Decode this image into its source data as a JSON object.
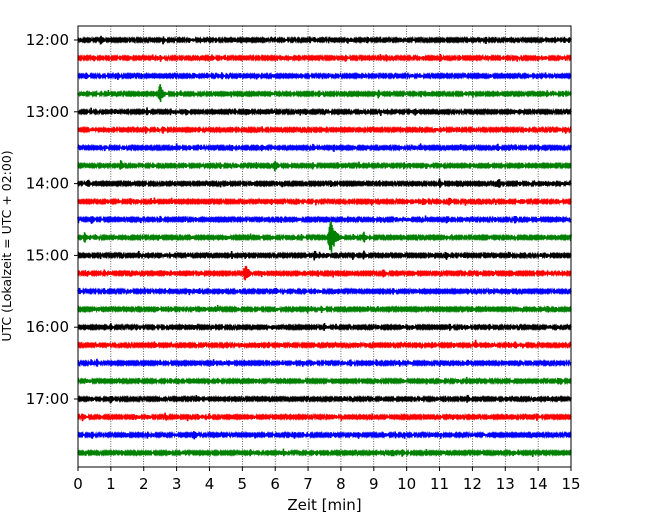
{
  "chart_data": {
    "type": "line",
    "title": "",
    "xlabel": "Zeit  [min]",
    "ylabel": "UTC (Lokalzeit = UTC + 02:00)",
    "xlim": [
      0,
      15
    ],
    "x_ticks": [
      0,
      1,
      2,
      3,
      4,
      5,
      6,
      7,
      8,
      9,
      10,
      11,
      12,
      13,
      14,
      15
    ],
    "y_tick_labels": [
      "12:00",
      "13:00",
      "14:00",
      "15:00",
      "16:00",
      "17:00"
    ],
    "grid": "vertical dotted at each minute",
    "color_cycle": [
      "#000000",
      "#ff0000",
      "#0000ff",
      "#008000"
    ],
    "traces": [
      {
        "start": "12:00",
        "color": "#000000",
        "events": [
          {
            "x": 0.7,
            "amp": 0.35
          },
          {
            "x": 8.2,
            "amp": 0.25
          },
          {
            "x": 8.8,
            "amp": 0.25
          },
          {
            "x": 14.8,
            "amp": 0.25
          }
        ]
      },
      {
        "start": "12:15",
        "color": "#ff0000",
        "events": [
          {
            "x": 7.8,
            "amp": 0.2
          },
          {
            "x": 11.6,
            "amp": 0.2
          }
        ]
      },
      {
        "start": "12:30",
        "color": "#0000ff",
        "events": [
          {
            "x": 6.8,
            "amp": 0.2
          },
          {
            "x": 10.4,
            "amp": 0.2
          }
        ]
      },
      {
        "start": "12:45",
        "color": "#008000",
        "events": [
          {
            "x": 2.5,
            "amp": 0.55
          }
        ]
      },
      {
        "start": "13:00",
        "color": "#000000",
        "events": [
          {
            "x": 2.1,
            "amp": 0.25
          },
          {
            "x": 5.9,
            "amp": 0.2
          }
        ]
      },
      {
        "start": "13:15",
        "color": "#ff0000",
        "events": [
          {
            "x": 2.6,
            "amp": 0.25
          },
          {
            "x": 5.6,
            "amp": 0.2
          }
        ]
      },
      {
        "start": "13:30",
        "color": "#0000ff",
        "events": [
          {
            "x": 1.4,
            "amp": 0.2
          },
          {
            "x": 14.0,
            "amp": 0.25
          }
        ]
      },
      {
        "start": "13:45",
        "color": "#008000",
        "events": [
          {
            "x": 1.3,
            "amp": 0.35
          },
          {
            "x": 6.0,
            "amp": 0.4
          }
        ]
      },
      {
        "start": "14:00",
        "color": "#000000",
        "events": [
          {
            "x": 0.3,
            "amp": 0.3
          },
          {
            "x": 12.8,
            "amp": 0.35
          },
          {
            "x": 11.0,
            "amp": 0.3
          }
        ]
      },
      {
        "start": "14:15",
        "color": "#ff0000",
        "events": [
          {
            "x": 10.0,
            "amp": 0.25
          },
          {
            "x": 11.3,
            "amp": 0.3
          }
        ]
      },
      {
        "start": "14:30",
        "color": "#0000ff",
        "events": [
          {
            "x": 0.4,
            "amp": 0.35
          },
          {
            "x": 13.3,
            "amp": 0.3
          }
        ]
      },
      {
        "start": "14:45",
        "color": "#008000",
        "events": [
          {
            "x": 7.7,
            "amp": 0.95
          },
          {
            "x": 0.2,
            "amp": 0.35
          },
          {
            "x": 8.7,
            "amp": 0.35
          }
        ]
      },
      {
        "start": "15:00",
        "color": "#000000",
        "events": [
          {
            "x": 7.2,
            "amp": 0.35
          },
          {
            "x": 11.2,
            "amp": 0.3
          },
          {
            "x": 8.7,
            "amp": 0.3
          }
        ]
      },
      {
        "start": "15:15",
        "color": "#ff0000",
        "events": [
          {
            "x": 5.1,
            "amp": 0.55
          },
          {
            "x": 9.3,
            "amp": 0.3
          }
        ]
      },
      {
        "start": "15:30",
        "color": "#0000ff",
        "events": [
          {
            "x": 4.4,
            "amp": 0.2
          }
        ]
      },
      {
        "start": "15:45",
        "color": "#008000",
        "events": [
          {
            "x": 7.1,
            "amp": 0.2
          }
        ]
      },
      {
        "start": "16:00",
        "color": "#000000",
        "events": [
          {
            "x": 1.0,
            "amp": 0.25
          },
          {
            "x": 7.5,
            "amp": 0.25
          }
        ]
      },
      {
        "start": "16:15",
        "color": "#ff0000",
        "events": [
          {
            "x": 12.1,
            "amp": 0.3
          },
          {
            "x": 13.3,
            "amp": 0.3
          }
        ]
      },
      {
        "start": "16:30",
        "color": "#0000ff",
        "events": [
          {
            "x": 0.4,
            "amp": 0.25
          },
          {
            "x": 2.5,
            "amp": 0.2
          }
        ]
      },
      {
        "start": "16:45",
        "color": "#008000",
        "events": [
          {
            "x": 9.1,
            "amp": 0.2
          }
        ]
      },
      {
        "start": "17:00",
        "color": "#000000",
        "events": [
          {
            "x": 1.0,
            "amp": 0.3
          },
          {
            "x": 14.3,
            "amp": 0.2
          }
        ]
      },
      {
        "start": "17:15",
        "color": "#ff0000",
        "events": [
          {
            "x": 9.4,
            "amp": 0.15
          }
        ]
      },
      {
        "start": "17:30",
        "color": "#0000ff",
        "events": [
          {
            "x": 8.3,
            "amp": 0.15
          }
        ]
      },
      {
        "start": "17:45",
        "color": "#008000",
        "events": [
          {
            "x": 3.2,
            "amp": 0.15
          }
        ]
      }
    ]
  }
}
